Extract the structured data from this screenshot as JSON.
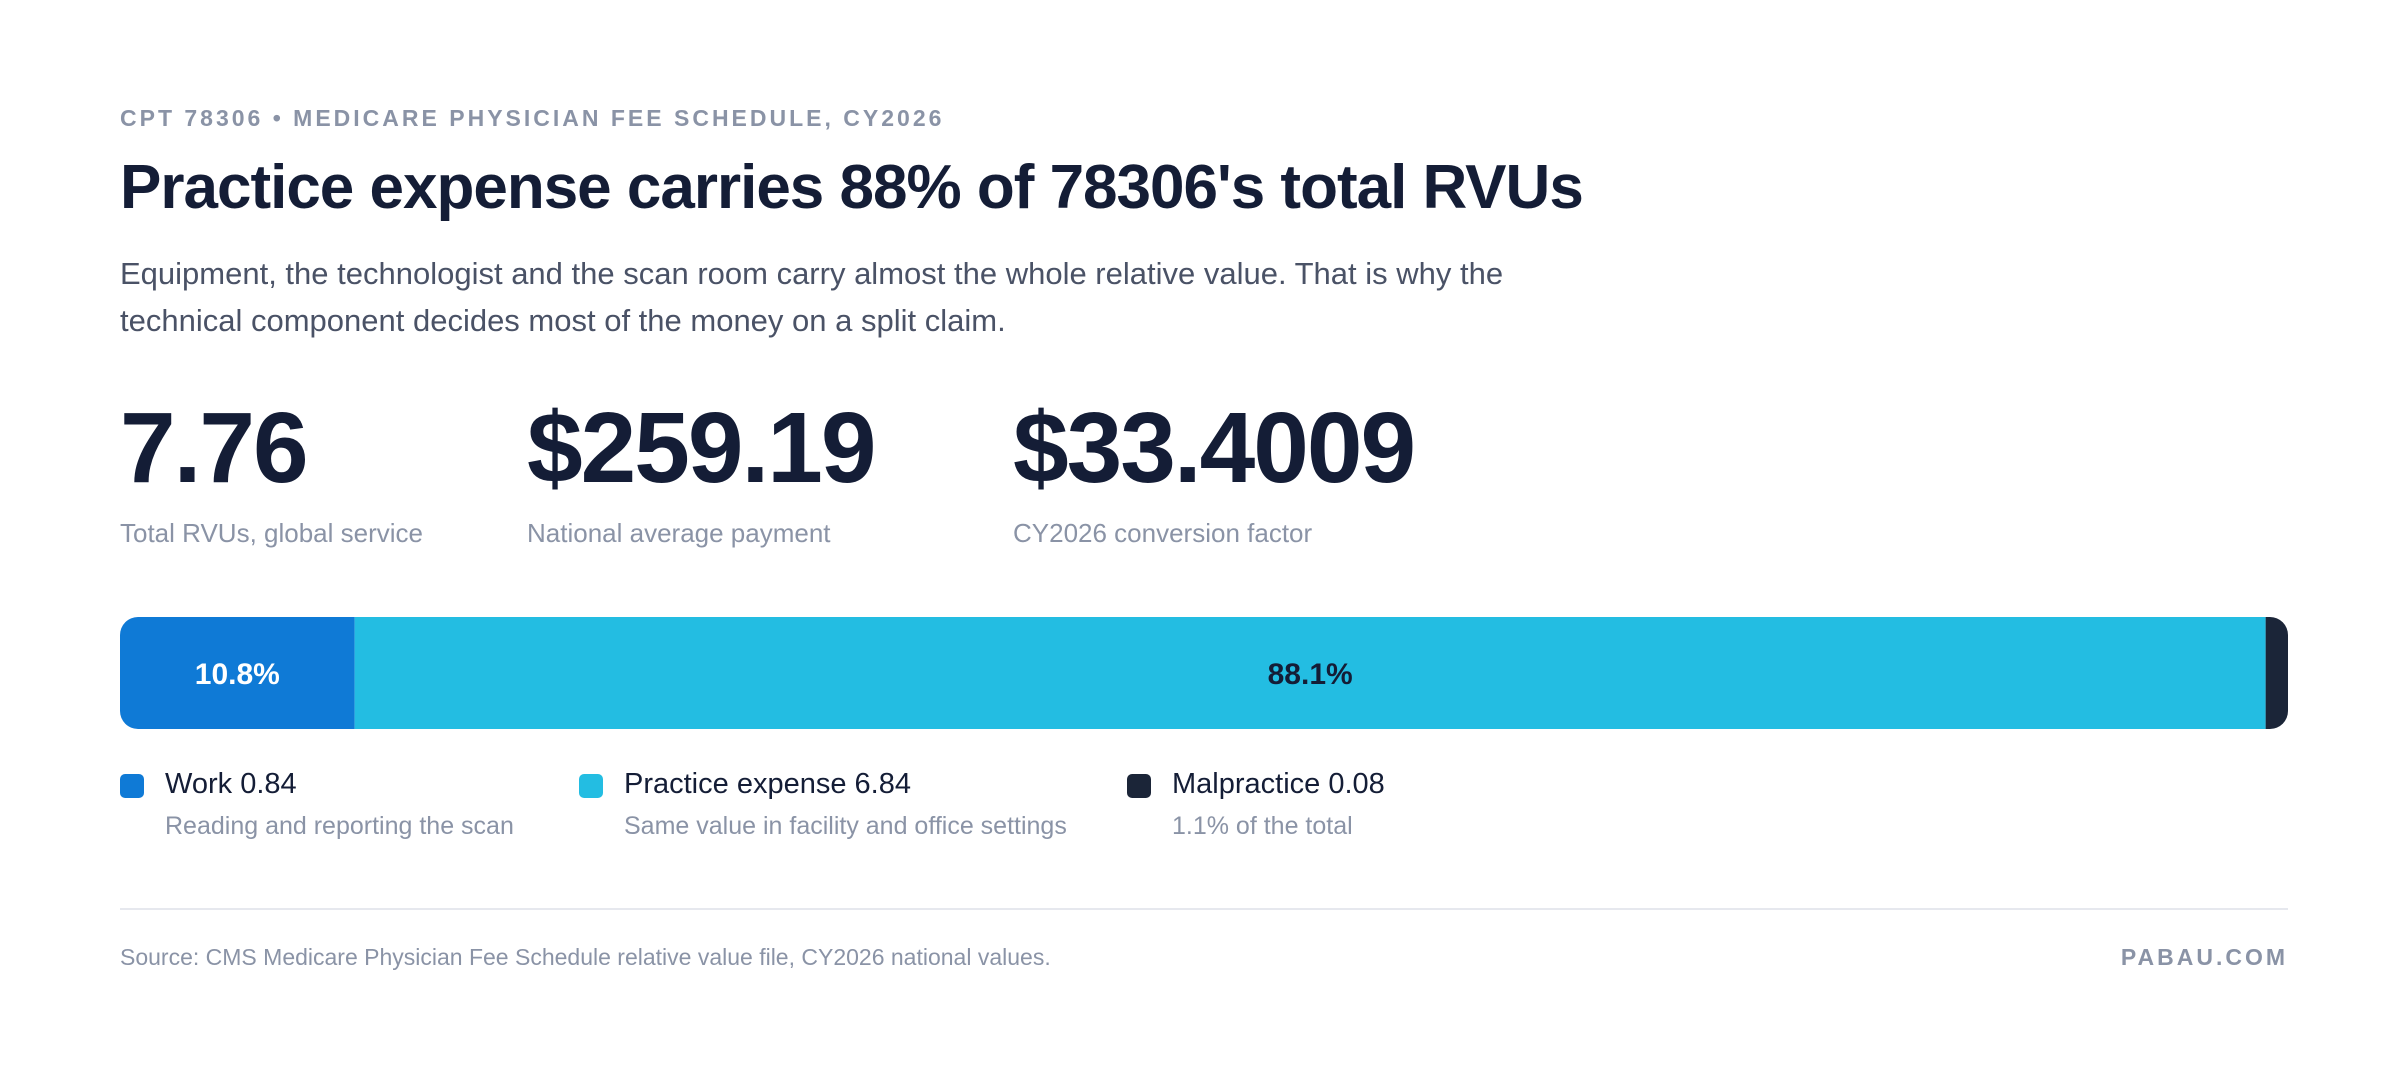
{
  "header": {
    "eyebrow": "CPT 78306 • MEDICARE PHYSICIAN FEE SCHEDULE, CY2026",
    "title": "Practice expense carries 88% of 78306's total RVUs",
    "subtitle": "Equipment, the technologist and the scan room carry almost the whole relative value. That is why the technical component decides most of the money on a split claim."
  },
  "stats": [
    {
      "value": "7.76",
      "label": "Total RVUs, global service"
    },
    {
      "value": "$259.19",
      "label": "National average payment"
    },
    {
      "value": "$33.4009",
      "label": "CY2026 conversion factor"
    }
  ],
  "chart_data": {
    "type": "bar",
    "orientation": "horizontal-stacked",
    "categories": [
      "Work",
      "Practice expense",
      "Malpractice"
    ],
    "values": [
      0.84,
      6.84,
      0.08
    ],
    "share_labels": [
      "10.8%",
      "88.1%",
      ""
    ],
    "colors": [
      "#0f7ad6",
      "#23bde2",
      "#1b2538"
    ],
    "label_colors": [
      "#ffffff",
      "#141d36",
      "#ffffff"
    ]
  },
  "legend": [
    {
      "title": "Work 0.84",
      "note": "Reading and reporting the scan",
      "color": "#0f7ad6"
    },
    {
      "title": "Practice expense 6.84",
      "note": "Same value in facility and office settings",
      "color": "#23bde2"
    },
    {
      "title": "Malpractice 0.08",
      "note": "1.1% of the total",
      "color": "#1b2538"
    }
  ],
  "footer": {
    "source": "Source: CMS Medicare Physician Fee Schedule relative value file, CY2026 national values.",
    "brand": "PABAU.COM"
  }
}
